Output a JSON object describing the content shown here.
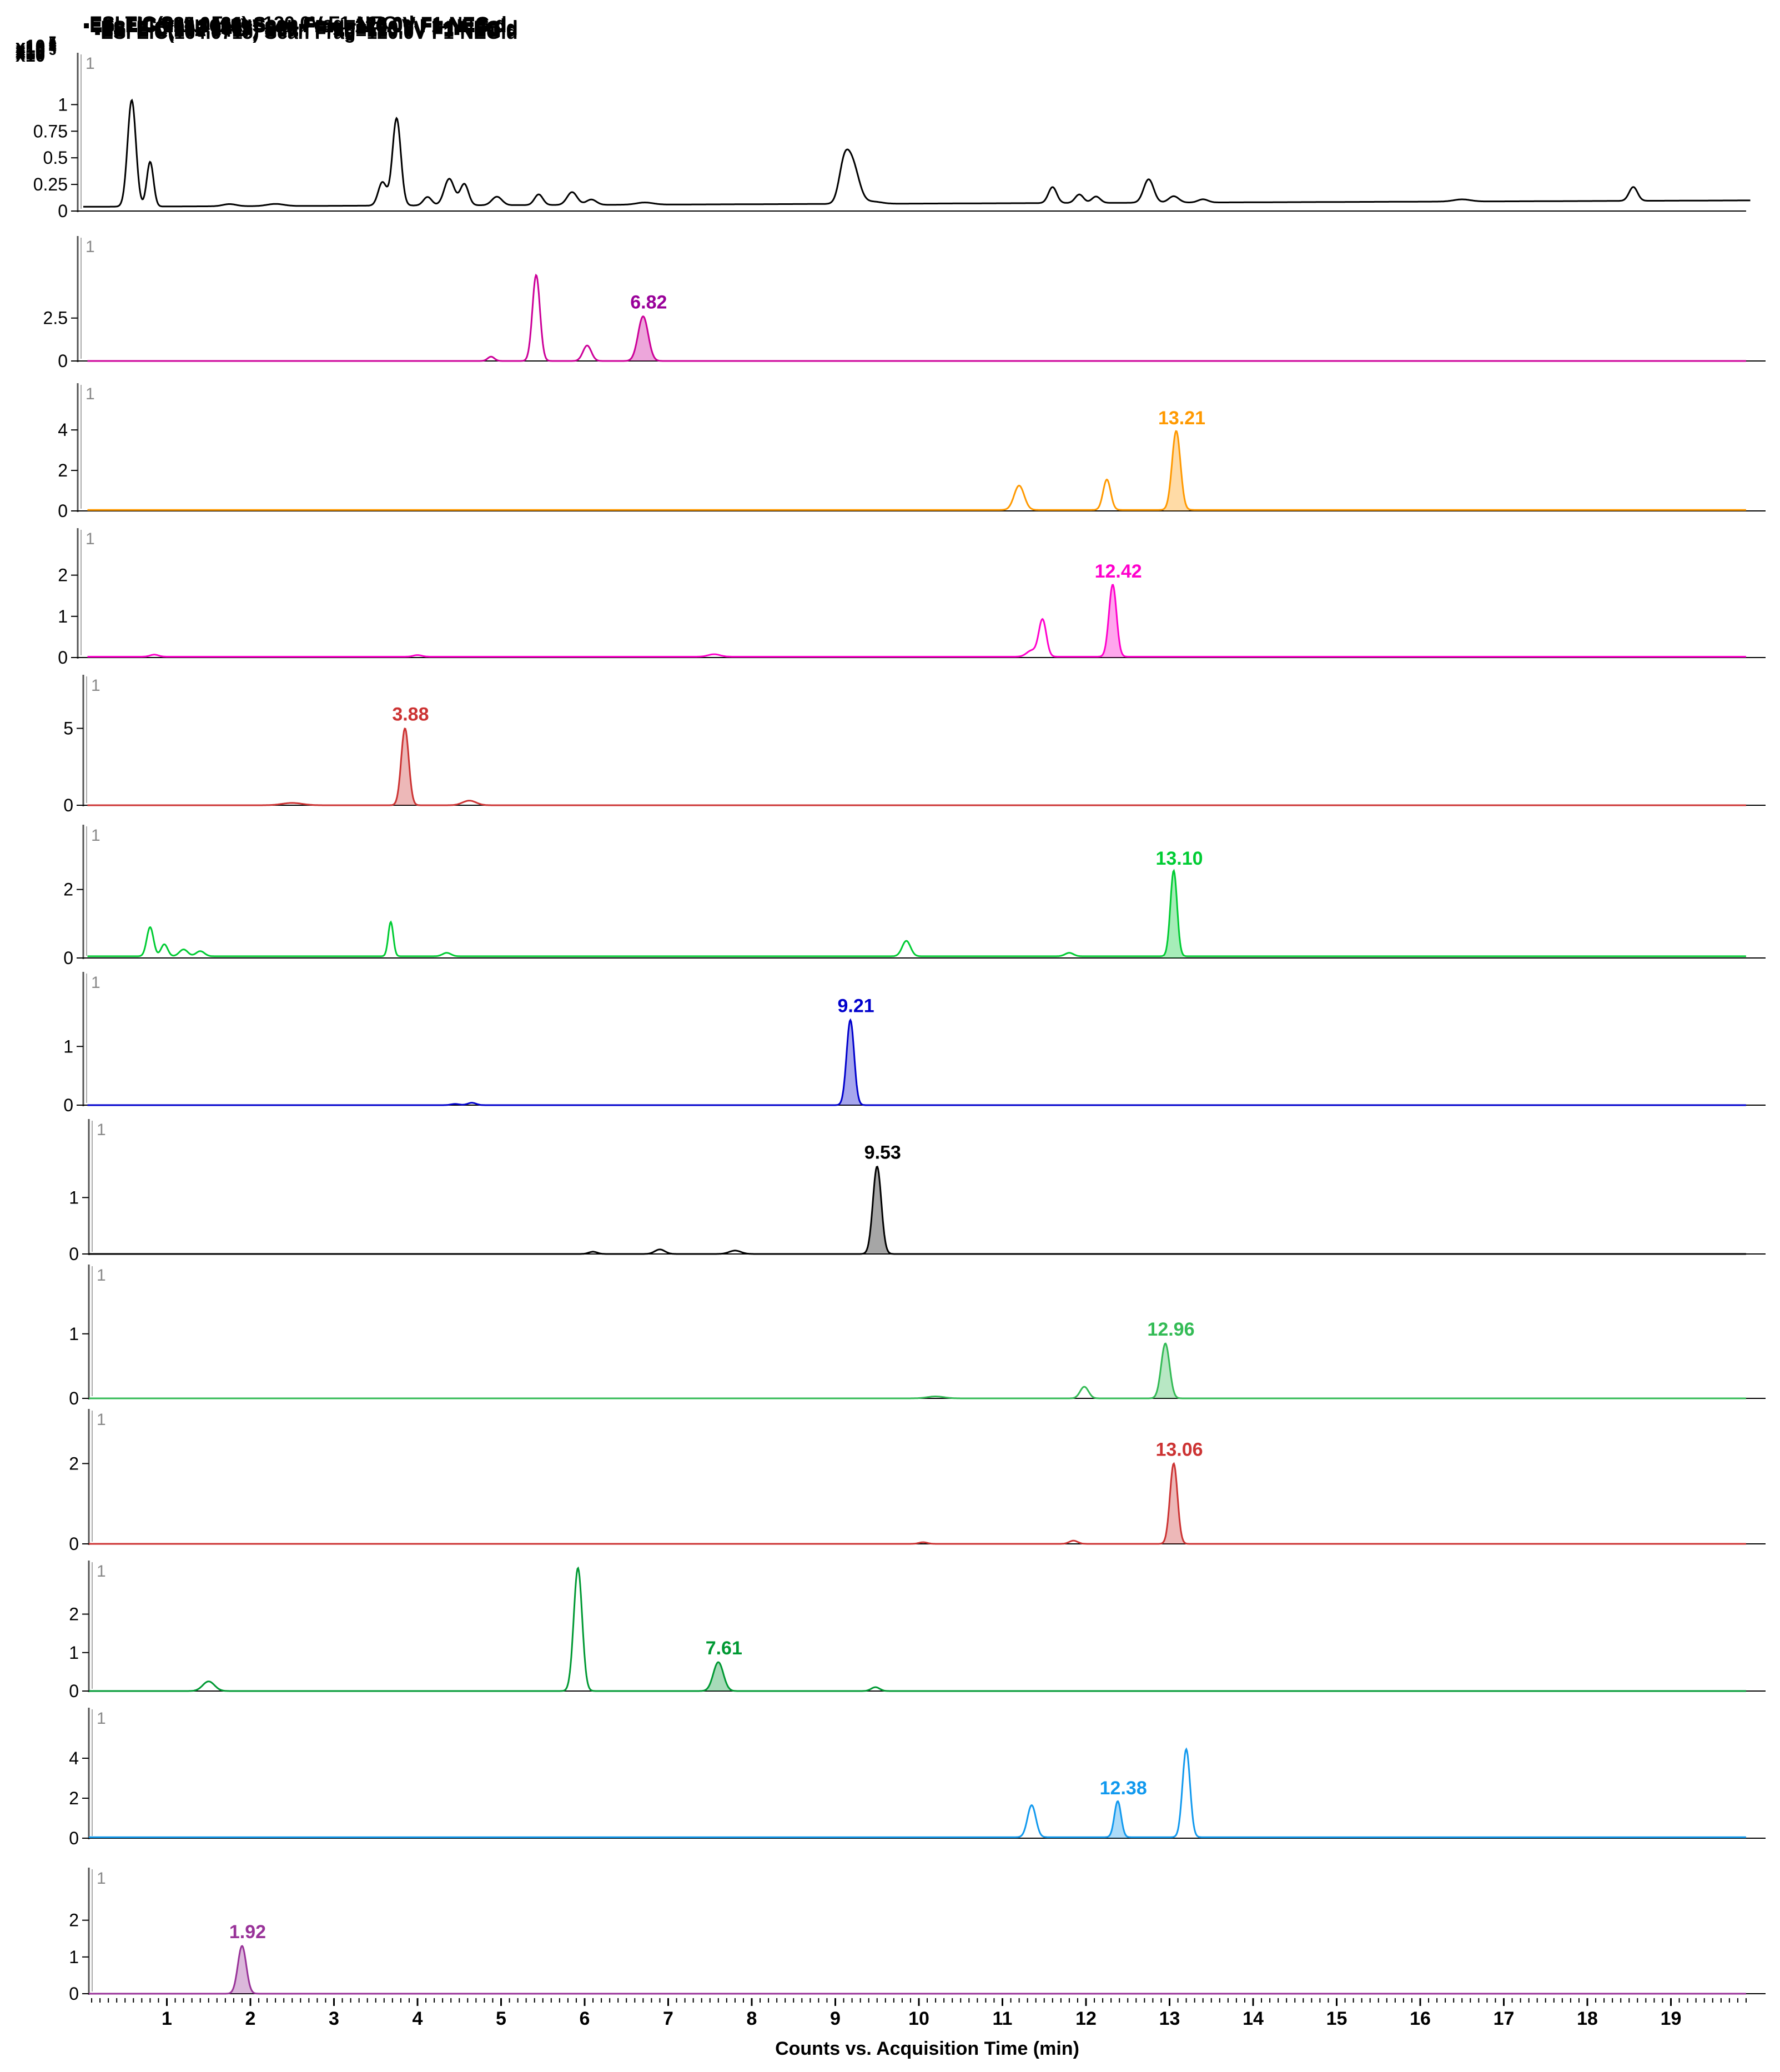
{
  "chart_data": {
    "type": "line",
    "x_unit": "min",
    "xlabel": "Counts vs. Acquisition Time (min)",
    "xlim": [
      0.0,
      20.0
    ],
    "xticks": [
      1,
      2,
      3,
      4,
      5,
      6,
      7,
      8,
      9,
      10,
      11,
      12,
      13,
      14,
      15,
      16,
      17,
      18,
      19
    ],
    "panels": [
      {
        "id": "tic",
        "title": "-ESI TIC Scan Frag=120.0V F1-NEG.d",
        "exponent_label": "x10 7",
        "color": "#000000",
        "ylim": [
          0,
          1.2
        ],
        "yticks": [
          {
            "v": 0,
            "label": "0"
          },
          {
            "v": 0.25,
            "label": "0.25"
          },
          {
            "v": 0.5,
            "label": "0.5"
          },
          {
            "v": 0.75,
            "label": "0.75"
          },
          {
            "v": 1,
            "label": "1"
          }
        ],
        "trace_index": "1",
        "baseline": 0.04,
        "baseline_end": 0.1,
        "peaks": [
          [
            0.58,
            1.0,
            0.05
          ],
          [
            0.8,
            0.42,
            0.04
          ],
          [
            1.75,
            0.02,
            0.08
          ],
          [
            2.3,
            0.02,
            0.1
          ],
          [
            3.58,
            0.22,
            0.05
          ],
          [
            3.75,
            0.82,
            0.05
          ],
          [
            4.12,
            0.08,
            0.05
          ],
          [
            4.38,
            0.25,
            0.06
          ],
          [
            4.56,
            0.2,
            0.05
          ],
          [
            4.95,
            0.08,
            0.06
          ],
          [
            5.45,
            0.1,
            0.05
          ],
          [
            5.85,
            0.12,
            0.06
          ],
          [
            6.08,
            0.05,
            0.06
          ],
          [
            6.72,
            0.02,
            0.1
          ],
          [
            9.2,
            0.38,
            0.08
          ],
          [
            9.1,
            0.28,
            0.06
          ],
          [
            9.45,
            0.02,
            0.1
          ],
          [
            11.6,
            0.15,
            0.05
          ],
          [
            11.92,
            0.08,
            0.05
          ],
          [
            12.12,
            0.06,
            0.05
          ],
          [
            12.75,
            0.22,
            0.06
          ],
          [
            13.05,
            0.06,
            0.06
          ],
          [
            13.4,
            0.03,
            0.06
          ],
          [
            16.5,
            0.02,
            0.1
          ],
          [
            18.55,
            0.13,
            0.05
          ]
        ],
        "label": null
      },
      {
        "id": "eic609",
        "title": "-ESI EIC(609.1461) Scan Frag=120.0V F1-NEG.d",
        "exponent_label": "x10 5",
        "color": "#cc0099",
        "ylim": [
          0,
          5.5
        ],
        "yticks": [
          {
            "v": 0,
            "label": "0"
          },
          {
            "v": 2.5,
            "label": "2.5"
          }
        ],
        "trace_index": "1",
        "baseline": 0,
        "baseline_end": 0,
        "peaks": [
          [
            4.88,
            0.25,
            0.04
          ],
          [
            5.42,
            5.0,
            0.045
          ],
          [
            6.03,
            0.9,
            0.05
          ],
          [
            6.7,
            2.6,
            0.06
          ]
        ],
        "label": {
          "text": "6.82",
          "x": 6.7,
          "y": 2.6,
          "color": "#990099"
        }
      },
      {
        "id": "eic285a",
        "title": "-ESI EIC(285.0424) Scan Frag=120.0V F1-NEG.d",
        "exponent_label": "x10 4",
        "color": "#ff9900",
        "ylim": [
          0,
          4.8
        ],
        "yticks": [
          {
            "v": 0,
            "label": "0"
          },
          {
            "v": 2,
            "label": "2"
          },
          {
            "v": 4,
            "label": "4"
          }
        ],
        "trace_index": "1",
        "baseline": 0.05,
        "baseline_end": 0.05,
        "peaks": [
          [
            11.2,
            1.2,
            0.06
          ],
          [
            12.25,
            1.5,
            0.045
          ],
          [
            13.08,
            3.9,
            0.05
          ]
        ],
        "label": {
          "text": "13.21",
          "x": 13.08,
          "y": 3.9,
          "color": "#ff9900"
        }
      },
      {
        "id": "eic301",
        "title": "-ESI EIC(301.0367) Scan Frag=120.0V F1-NEG.d",
        "exponent_label": "x10 4",
        "color": "#ff00cc",
        "ylim": [
          0,
          2.4
        ],
        "yticks": [
          {
            "v": 0,
            "label": "0"
          },
          {
            "v": 1,
            "label": "1"
          },
          {
            "v": 2,
            "label": "2"
          }
        ],
        "trace_index": "1",
        "baseline": 0.02,
        "baseline_end": 0.02,
        "peaks": [
          [
            0.85,
            0.05,
            0.05
          ],
          [
            4.0,
            0.04,
            0.05
          ],
          [
            7.55,
            0.06,
            0.07
          ],
          [
            11.35,
            0.15,
            0.06
          ],
          [
            11.48,
            0.9,
            0.045
          ],
          [
            12.32,
            1.75,
            0.045
          ]
        ],
        "label": {
          "text": "12.42",
          "x": 12.32,
          "y": 1.75,
          "color": "#ff00cc"
        }
      },
      {
        "id": "eic611",
        "title": "-ESI EIC(611.1625) Scan Frag=120.0V F1-NEG.d",
        "exponent_label": "x10 6",
        "color": "#cc3333",
        "ylim": [
          0,
          6.5
        ],
        "yticks": [
          {
            "v": 0,
            "label": "0"
          },
          {
            "v": 5,
            "label": "5"
          }
        ],
        "trace_index": "1",
        "baseline": 0,
        "baseline_end": 0,
        "peaks": [
          [
            2.5,
            0.15,
            0.12
          ],
          [
            3.85,
            5.0,
            0.045
          ],
          [
            4.62,
            0.3,
            0.08
          ]
        ],
        "label": {
          "text": "3.88",
          "x": 3.85,
          "y": 5.0,
          "color": "#cc3333"
        }
      },
      {
        "id": "eic271",
        "title": "-ESI EIC(271.0620) Scan Frag=120.0V F1-NEG.d",
        "exponent_label": "x10 3",
        "color": "#00cc33",
        "ylim": [
          0,
          3.0
        ],
        "yticks": [
          {
            "v": 0,
            "label": "0"
          },
          {
            "v": 2,
            "label": "2"
          }
        ],
        "trace_index": "1",
        "baseline": 0.05,
        "baseline_end": 0.05,
        "peaks": [
          [
            0.8,
            0.85,
            0.04
          ],
          [
            0.97,
            0.35,
            0.04
          ],
          [
            1.2,
            0.2,
            0.05
          ],
          [
            1.4,
            0.15,
            0.05
          ],
          [
            3.68,
            1.0,
            0.03
          ],
          [
            4.35,
            0.1,
            0.05
          ],
          [
            9.85,
            0.45,
            0.05
          ],
          [
            11.8,
            0.1,
            0.05
          ],
          [
            13.05,
            2.5,
            0.04
          ]
        ],
        "label": {
          "text": "13.10",
          "x": 13.05,
          "y": 2.5,
          "color": "#00cc33"
        }
      },
      {
        "id": "eic593",
        "title": "-ESI EIC(593.1512) Scan Frag=120.0V F1-NEG.d",
        "exponent_label": "x10 6",
        "color": "#0000cc",
        "ylim": [
          0,
          1.75
        ],
        "yticks": [
          {
            "v": 0,
            "label": "0"
          },
          {
            "v": 1,
            "label": "1"
          }
        ],
        "trace_index": "1",
        "baseline": 0,
        "baseline_end": 0,
        "peaks": [
          [
            4.45,
            0.02,
            0.05
          ],
          [
            4.65,
            0.04,
            0.05
          ],
          [
            9.18,
            1.45,
            0.045
          ]
        ],
        "label": {
          "text": "9.21",
          "x": 9.18,
          "y": 1.45,
          "color": "#0000cc"
        }
      },
      {
        "id": "eic447",
        "title": "-ESI EIC(447.0941) Scan Frag=120.0V F1-NEG.d",
        "exponent_label": "x10 5",
        "color": "#000000",
        "ylim": [
          0,
          1.85
        ],
        "yticks": [
          {
            "v": 0,
            "label": "0"
          },
          {
            "v": 1,
            "label": "1"
          }
        ],
        "trace_index": "1",
        "baseline": 0,
        "baseline_end": 0,
        "peaks": [
          [
            6.1,
            0.04,
            0.05
          ],
          [
            6.9,
            0.08,
            0.06
          ],
          [
            7.8,
            0.06,
            0.07
          ],
          [
            9.5,
            1.55,
            0.05
          ]
        ],
        "label": {
          "text": "9.53",
          "x": 9.5,
          "y": 1.55,
          "color": "#000000"
        }
      },
      {
        "id": "eic909",
        "title": "-ESI EIC(909.2135) Scan Frag=120.0V F1-NEG.d",
        "exponent_label": "x10 5",
        "color": "#33bb55",
        "ylim": [
          0,
          1.6
        ],
        "yticks": [
          {
            "v": 0,
            "label": "0"
          },
          {
            "v": 1,
            "label": "1"
          }
        ],
        "trace_index": "1",
        "baseline": 0,
        "baseline_end": 0,
        "peaks": [
          [
            10.2,
            0.03,
            0.1
          ],
          [
            11.98,
            0.18,
            0.05
          ],
          [
            12.95,
            0.85,
            0.05
          ]
        ],
        "label": {
          "text": "12.96",
          "x": 12.95,
          "y": 0.85,
          "color": "#33bb55"
        }
      },
      {
        "id": "eic269",
        "title": "-ESI EIC(269.0458) Scan Frag=120.0V F1-NEG.d",
        "exponent_label": "x10 4",
        "color": "#cc3333",
        "ylim": [
          0,
          2.6
        ],
        "yticks": [
          {
            "v": 0,
            "label": "0"
          },
          {
            "v": 2,
            "label": "2"
          }
        ],
        "trace_index": "1",
        "baseline": 0,
        "baseline_end": 0,
        "peaks": [
          [
            10.05,
            0.04,
            0.05
          ],
          [
            11.85,
            0.08,
            0.05
          ],
          [
            13.05,
            2.0,
            0.045
          ]
        ],
        "label": {
          "text": "13.06",
          "x": 13.05,
          "y": 2.0,
          "color": "#cc3333"
        }
      },
      {
        "id": "eic463",
        "title": "-ESI EIC(463.0893) Scan Frag=120.0V F1-NEG.d",
        "exponent_label": "x10 5",
        "color": "#009933",
        "ylim": [
          0,
          2.6
        ],
        "yticks": [
          {
            "v": 0,
            "label": "0"
          },
          {
            "v": 1,
            "label": "1"
          },
          {
            "v": 2,
            "label": "2"
          }
        ],
        "trace_index": "1",
        "baseline": 0,
        "baseline_end": 0,
        "peaks": [
          [
            1.5,
            0.25,
            0.07
          ],
          [
            5.92,
            3.2,
            0.05
          ],
          [
            7.6,
            0.75,
            0.06
          ],
          [
            9.48,
            0.1,
            0.05
          ]
        ],
        "label": {
          "text": "7.61",
          "x": 7.6,
          "y": 0.75,
          "color": "#009933"
        }
      },
      {
        "id": "eic285b",
        "title": "-ESI EIC(285.0417) Scan Frag=120.0V F1-NEG.d",
        "exponent_label": "x10 4",
        "color": "#1199ee",
        "ylim": [
          0,
          5.0
        ],
        "yticks": [
          {
            "v": 0,
            "label": "0"
          },
          {
            "v": 2,
            "label": "2"
          },
          {
            "v": 4,
            "label": "4"
          }
        ],
        "trace_index": "1",
        "baseline": 0.05,
        "baseline_end": 0.05,
        "peaks": [
          [
            11.35,
            1.6,
            0.05
          ],
          [
            12.38,
            1.8,
            0.04
          ],
          [
            13.2,
            4.4,
            0.045
          ]
        ],
        "label": {
          "text": "12.38",
          "x": 12.38,
          "y": 1.8,
          "color": "#1199ee"
        }
      },
      {
        "id": "eic164",
        "title": "-ESI EIC(164.0715) Scan Frag=120.0V F1-NEG.d",
        "exponent_label": "x10 5",
        "color": "#993399",
        "ylim": [
          0,
          2.6
        ],
        "yticks": [
          {
            "v": 0,
            "label": "0"
          },
          {
            "v": 1,
            "label": "1"
          },
          {
            "v": 2,
            "label": "2"
          }
        ],
        "trace_index": "1",
        "baseline": 0,
        "baseline_end": 0,
        "peaks": [
          [
            1.9,
            1.3,
            0.05
          ]
        ],
        "label": {
          "text": "1.92",
          "x": 1.9,
          "y": 1.3,
          "color": "#993399"
        }
      }
    ]
  }
}
